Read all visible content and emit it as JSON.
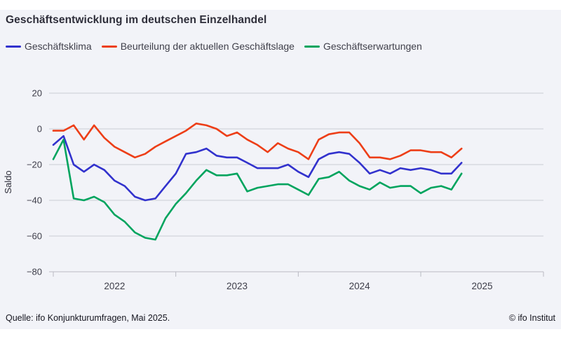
{
  "title": "Geschäftsentwicklung im deutschen Einzelhandel",
  "legend": [
    {
      "label": "Geschäftsklima",
      "color": "#3232cd"
    },
    {
      "label": "Beurteilung der aktuellen Geschäftslage",
      "color": "#ed3e17"
    },
    {
      "label": "Geschäftserwartungen",
      "color": "#00a45e"
    }
  ],
  "footer": {
    "source": "Quelle: ifo Konjunkturumfragen, Mai 2025.",
    "copyright": "© ifo Institut"
  },
  "chart_data": {
    "type": "line",
    "title": "Geschäftsentwicklung im deutschen Einzelhandel",
    "xlabel": "",
    "ylabel": "Saldo",
    "frequency": "monthly",
    "x_start": "2022-01",
    "x_end": "2025-05",
    "year_labels": [
      "2022",
      "2023",
      "2024",
      "2025"
    ],
    "y_ticks": [
      20,
      0,
      -20,
      -40,
      -60,
      -80
    ],
    "ylim": [
      -85,
      25
    ],
    "grid": "horizontal",
    "legend_position": "top-left",
    "series": [
      {
        "name": "Geschäftsklima",
        "color": "#3232cd",
        "values": [
          -9,
          -4,
          -20,
          -24,
          -20,
          -23,
          -29,
          -32,
          -38,
          -40,
          -39,
          -32,
          -25,
          -14,
          -13,
          -11,
          -15,
          -16,
          -16,
          -19,
          -22,
          -22,
          -22,
          -20,
          -24,
          -27,
          -17,
          -14,
          -13,
          -14,
          -19,
          -25,
          -23,
          -25,
          -22,
          -23,
          -22,
          -23,
          -25,
          -25,
          -19
        ]
      },
      {
        "name": "Beurteilung der aktuellen Geschäftslage",
        "color": "#ed3e17",
        "values": [
          -1,
          -1,
          2,
          -6,
          2,
          -5,
          -10,
          -13,
          -16,
          -14,
          -10,
          -7,
          -4,
          -1,
          3,
          2,
          0,
          -4,
          -2,
          -6,
          -9,
          -13,
          -8,
          -11,
          -13,
          -17,
          -6,
          -3,
          -2,
          -2,
          -8,
          -16,
          -16,
          -17,
          -15,
          -12,
          -12,
          -13,
          -13,
          -16,
          -11
        ]
      },
      {
        "name": "Geschäftserwartungen",
        "color": "#00a45e",
        "values": [
          -17,
          -6,
          -39,
          -40,
          -38,
          -41,
          -48,
          -52,
          -58,
          -61,
          -62,
          -50,
          -42,
          -36,
          -29,
          -23,
          -26,
          -26,
          -25,
          -35,
          -33,
          -32,
          -31,
          -31,
          -34,
          -37,
          -28,
          -27,
          -24,
          -29,
          -32,
          -34,
          -30,
          -33,
          -32,
          -32,
          -36,
          -33,
          -32,
          -34,
          -25
        ]
      }
    ]
  }
}
